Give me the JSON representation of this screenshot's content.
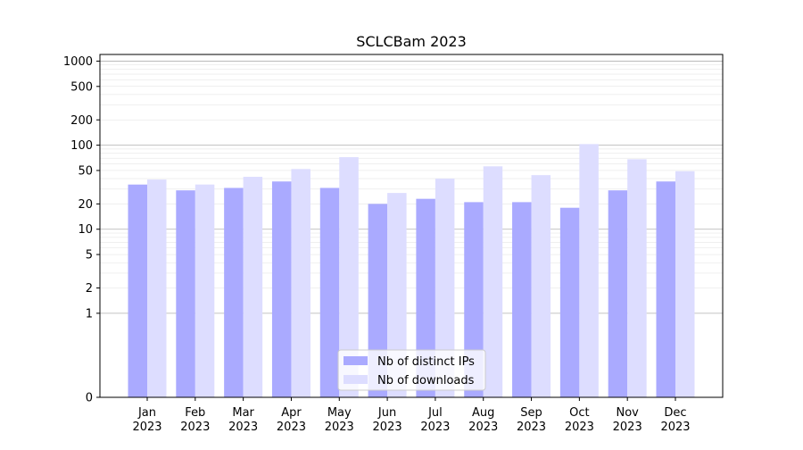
{
  "chart_data": {
    "type": "bar",
    "title": "SCLCBam 2023",
    "xlabel": "",
    "ylabel": "",
    "yscale": "symlog",
    "ylim": [
      0,
      1200
    ],
    "yticks": [
      {
        "value": 0,
        "label": "0"
      },
      {
        "value": 1,
        "label": "1"
      },
      {
        "value": 2,
        "label": "2"
      },
      {
        "value": 5,
        "label": "5"
      },
      {
        "value": 10,
        "label": "10"
      },
      {
        "value": 20,
        "label": "20"
      },
      {
        "value": 50,
        "label": "50"
      },
      {
        "value": 100,
        "label": "100"
      },
      {
        "value": 200,
        "label": "200"
      },
      {
        "value": 500,
        "label": "500"
      },
      {
        "value": 1000,
        "label": "1000"
      }
    ],
    "categories": [
      [
        "Jan",
        "2023"
      ],
      [
        "Feb",
        "2023"
      ],
      [
        "Mar",
        "2023"
      ],
      [
        "Apr",
        "2023"
      ],
      [
        "May",
        "2023"
      ],
      [
        "Jun",
        "2023"
      ],
      [
        "Jul",
        "2023"
      ],
      [
        "Aug",
        "2023"
      ],
      [
        "Sep",
        "2023"
      ],
      [
        "Oct",
        "2023"
      ],
      [
        "Nov",
        "2023"
      ],
      [
        "Dec",
        "2023"
      ]
    ],
    "series": [
      {
        "name": "Nb of distinct IPs",
        "color": "#aaaaff",
        "values": [
          34,
          29,
          31,
          37,
          31,
          20,
          23,
          21,
          21,
          18,
          29,
          37
        ]
      },
      {
        "name": "Nb of downloads",
        "color": "#ddddff",
        "values": [
          39,
          34,
          42,
          52,
          72,
          27,
          40,
          56,
          44,
          103,
          68,
          49
        ]
      }
    ],
    "grid": true,
    "legend_position": "lower-center"
  }
}
